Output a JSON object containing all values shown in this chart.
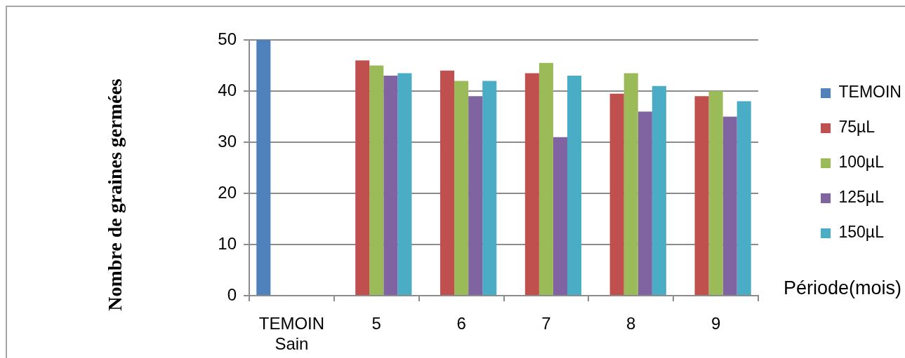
{
  "chart_data": {
    "type": "bar",
    "ylabel": "Nombre de graines germées",
    "xlabel": "Période(mois)",
    "categories": [
      "TEMOIN Sain",
      "5",
      "6",
      "7",
      "8",
      "9"
    ],
    "series": [
      {
        "name": "TEMOIN",
        "color": "#4f81bd",
        "values": [
          50,
          null,
          null,
          null,
          null,
          null
        ]
      },
      {
        "name": "75µL",
        "color": "#c0504d",
        "values": [
          null,
          46,
          44,
          43.5,
          39.5,
          39
        ]
      },
      {
        "name": "100µL",
        "color": "#9bbb59",
        "values": [
          null,
          45,
          42,
          45.5,
          43.5,
          40
        ]
      },
      {
        "name": "125µL",
        "color": "#8064a2",
        "values": [
          null,
          43,
          39,
          31,
          36,
          35
        ]
      },
      {
        "name": "150µL",
        "color": "#4bacc6",
        "values": [
          null,
          43.5,
          42,
          43,
          41,
          38
        ]
      }
    ],
    "ylim": [
      0,
      50
    ],
    "yticks": [
      0,
      10,
      20,
      30,
      40,
      50
    ],
    "grid": "y",
    "legend": "right"
  }
}
